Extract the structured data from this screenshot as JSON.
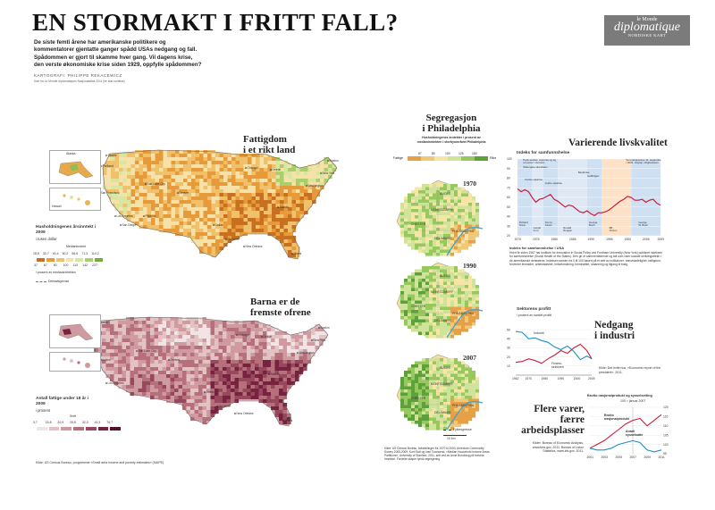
{
  "header": {
    "title": "EN STORMAKT I FRITT FALL?",
    "intro": "De siste femti årene har amerikanske politikere og kommentatorer gjentatte ganger spådd USAs nedgang og fall. Spådommen er gjort til skamme hver gang. Vil dagens krise, den verste økonomiske krise siden 1929, oppfylle spådommen?",
    "cartographer": "KARTOGRAFI: PHILIPPE REKACEWICZ",
    "credit_line": "Kart fra Le Monde diplomatiques Nasjonalatlas 2011 (se stat.no/atlas)"
  },
  "logo": {
    "line1": "le Monde",
    "line2": "diplomatique",
    "line3": "NORDISKE KART"
  },
  "map1": {
    "title_l1": "Fattigdom",
    "title_l2": "i et rikt land",
    "inset_alaska": "Alaska",
    "inset_hawaii": "Hawaii",
    "legend_title": "Husholdningenes årsinntekt i 2009",
    "legend_unit": "i tusen dollar",
    "legend_median": "Medianinntekt",
    "legend_values": [
      "18,8",
      "33,7",
      "40,4",
      "50,2",
      "56,6",
      "71,3",
      "114,2"
    ],
    "legend_pct": [
      "37",
      "67",
      "80",
      "100",
      "113",
      "142",
      "227"
    ],
    "legend_pct_caption": "i prosent av medianinntekten",
    "legend_border": "Delstatsgrense",
    "legend_colors": [
      "#c8701f",
      "#e69a3a",
      "#f1c06a",
      "#f6e2a8",
      "#d8e6a0",
      "#a8cf6a",
      "#6fae3c"
    ],
    "cities": [
      "Seattle",
      "Portland",
      "San Francisco",
      "Los Angeles",
      "San Diego",
      "Salt Lake City",
      "Phoenix",
      "Denver",
      "Dallas",
      "Houston",
      "Chicago",
      "Detroit",
      "Atlanta",
      "New Orleans",
      "Miami",
      "Washington",
      "New York",
      "Boston"
    ]
  },
  "map2": {
    "title_l1": "Barna er de",
    "title_l2": "fremste ofrene",
    "legend_title": "Antall fattige under 18 år i 2009",
    "legend_unit": "i prosent",
    "legend_median": "Snitt",
    "legend_values": [
      "3,7",
      "15,8",
      "20,9",
      "25,5",
      "32,0",
      "41,3",
      "76,7"
    ],
    "legend_colors": [
      "#f2e4e4",
      "#e3c2c4",
      "#cf9aa0",
      "#b5707c",
      "#97485c",
      "#76233f",
      "#561028"
    ],
    "source": "Kilde: US Census Bureau, programmet «Small area income and poverty estimates» (SAIPE)",
    "cities": [
      "Seattle",
      "San Francisco",
      "Los Angeles",
      "Salt Lake City",
      "Denver",
      "Chicago",
      "Detroit",
      "Dallas",
      "Houston",
      "Atlanta",
      "New Orleans",
      "Miami",
      "Washington",
      "New York",
      "Boston"
    ]
  },
  "philadelphia": {
    "title_l1": "Segregasjon",
    "title_l2": "i Philadelphia",
    "legend_title": "Husholdningenes inntekter i prosent av medianinntekten i storbyområdet Philadelphia",
    "legend_ticks": [
      "67",
      "80",
      "100",
      "125",
      "150"
    ],
    "legend_poor": "Fattige",
    "legend_rich": "Rike",
    "legend_colors": [
      "#e6a046",
      "#f1c878",
      "#f6e6a6",
      "#cfe39a",
      "#97c85e",
      "#5da13a"
    ],
    "years": [
      "1970",
      "1990",
      "2007"
    ],
    "counties": [
      "BUCKS",
      "MONTGOMERY",
      "CHESTER",
      "DELAWARE",
      "PHILADELPHIA"
    ],
    "river": "Fylkesgrense",
    "scale": "10 km",
    "source": "Kilde: US Census Bureau, folketellinger fra 1970 til 2000; American Community Survey 2005-2009; Kurt Stoll og Ivan Townsend, «Median Household Income Areas Partitions», University of Stanford, 2011, sett ved av Anne Bondolog på brovbre rimeleke. Fordelte skaper fyrsik segregering"
  },
  "wellbeing": {
    "title": "Varierende livskvalitet",
    "axis_title": "Indeks for samfunnshelse",
    "y_ticks": [
      "100",
      "90",
      "80",
      "70",
      "60",
      "50",
      "40",
      "30",
      "20"
    ],
    "x_ticks": [
      "1970",
      "1975",
      "1980",
      "1985",
      "1990",
      "1995",
      "2000",
      "2005",
      "2009"
    ],
    "events": [
      "Første oljekrise",
      "Andre oljekrise",
      "Watergate-skandalen",
      "Paris-avtalen signeres og eget kontor i Vietnam",
      "Bankkrise",
      "Golfkrigen",
      "Terrorangrepene 11. september 2001. Angrep i Afghanistan starter"
    ],
    "presidents": [
      "Richard Nixon",
      "Gerald Ford",
      "Jimmy Carter",
      "Ronald Reagan",
      "George Bush",
      "Bill Clinton",
      "George W. Bush"
    ],
    "note_title": "Indeks for samfunnshelse i USA",
    "note": "Hvert år siden 1987 har Institute for Innovation in Social Policy ved Fordham University (New York) publisert indeksen for samfunnshelse (Social Health of the States). Den gir et sammenfattende og tall som viser sosiale utviklingstrekk i de amerikanske delstatene. Indeksen samler fra 0 til 100 basert på et sett av indikatorer: barnedødelighet, fattigdom, forventet levealder, arbeidsløshet, helseforsikring, kriminalitet, utdanning og tilgang til bolig.",
    "chart_data": {
      "type": "line",
      "x": [
        1970,
        1971,
        1972,
        1973,
        1974,
        1975,
        1976,
        1977,
        1978,
        1979,
        1980,
        1981,
        1982,
        1983,
        1984,
        1985,
        1986,
        1987,
        1988,
        1989,
        1990,
        1991,
        1992,
        1993,
        1994,
        1995,
        1996,
        1997,
        1998,
        1999,
        2000,
        2001,
        2002,
        2003,
        2004,
        2005,
        2006,
        2007,
        2008,
        2009
      ],
      "values": [
        69,
        66,
        68,
        66,
        60,
        55,
        58,
        59,
        61,
        63,
        58,
        56,
        53,
        50,
        52,
        51,
        48,
        45,
        44,
        46,
        43,
        41,
        44,
        44,
        45,
        47,
        50,
        53,
        56,
        58,
        61,
        60,
        57,
        57,
        58,
        55,
        57,
        58,
        54,
        52
      ],
      "ylim": [
        20,
        100
      ],
      "xlim": [
        1970,
        2009
      ]
    }
  },
  "industry": {
    "title_l1": "Nedgang",
    "title_l2": "i industri",
    "axis_title": "Sektorens profitt",
    "axis_sub": "i prosent av samlet profitt",
    "series_industry": "Industri",
    "series_finance": "Finans-sektoren",
    "y_ticks": [
      "50",
      "40",
      "30",
      "20",
      "10"
    ],
    "x_ticks": [
      "1962",
      "1970",
      "1980",
      "1990",
      "2000",
      "2009"
    ],
    "source": "Kilde: Det hvite hus, «Economic report of the president», 2011.",
    "chart_data": {
      "type": "line",
      "x": [
        1962,
        1966,
        1970,
        1974,
        1978,
        1982,
        1986,
        1990,
        1994,
        1998,
        2002,
        2006,
        2009
      ],
      "series": [
        {
          "name": "Industri",
          "values": [
            48,
            47,
            40,
            41,
            38,
            36,
            31,
            28,
            32,
            26,
            17,
            21,
            18
          ]
        },
        {
          "name": "Finans-sektoren",
          "values": [
            14,
            15,
            18,
            16,
            13,
            18,
            22,
            27,
            24,
            30,
            34,
            27,
            18
          ]
        }
      ],
      "ylim": [
        0,
        55
      ]
    }
  },
  "gdp": {
    "title_l1": "Flere varer,",
    "title_l2": "færre arbeidsplasser",
    "axis_title": "Brutto nasjonalprodukt og sysselsetting",
    "axis_sub": "100 = januar 2007",
    "series_gdp": "Brutto nasjonalprodukt",
    "series_jobs": "Antall sysselsatte",
    "y_ticks": [
      "120",
      "115",
      "110",
      "105",
      "100",
      "95"
    ],
    "x_ticks": [
      "2001",
      "2003",
      "2005",
      "2007",
      "2009",
      "2011"
    ],
    "source": "Kilder: Bureau of Economic Analysis, www.bea.gov, 2011; Bureau of Labor Statistics, www.bls.gov, 2011.",
    "chart_data": {
      "type": "line",
      "x": [
        2001,
        2002,
        2003,
        2004,
        2005,
        2006,
        2007,
        2008,
        2009,
        2010,
        2011
      ],
      "series": [
        {
          "name": "Brutto nasjonalprodukt",
          "values": [
            98,
            100,
            102,
            105,
            108,
            111,
            113,
            114,
            110,
            113,
            116
          ]
        },
        {
          "name": "Antall sysselsatte",
          "values": [
            98,
            97,
            97,
            98,
            100,
            101,
            102,
            101,
            97,
            96,
            97
          ]
        }
      ],
      "ylim": [
        95,
        120
      ]
    }
  }
}
